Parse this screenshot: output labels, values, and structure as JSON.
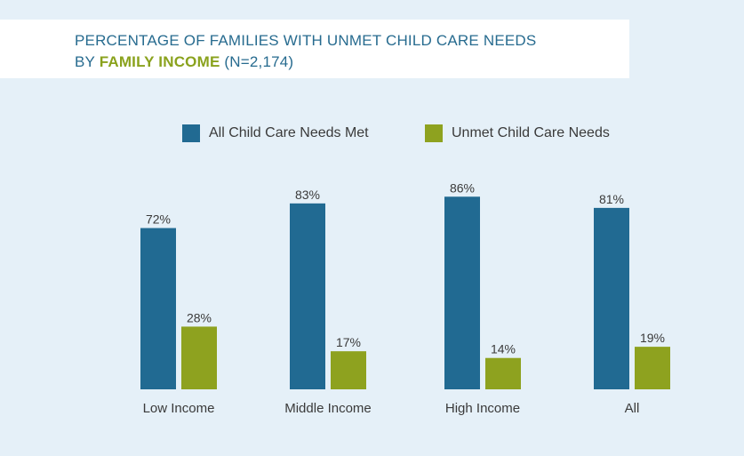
{
  "title": {
    "line1": "PERCENTAGE OF FAMILIES WITH UNMET CHILD CARE NEEDS",
    "line2_prefix": "BY ",
    "line2_highlight": "FAMILY INCOME",
    "line2_suffix": " (N=2,174)"
  },
  "colors": {
    "met": "#216a92",
    "unmet": "#8ea21f",
    "background": "#e5f0f8"
  },
  "chart_data": {
    "type": "bar",
    "title": "PERCENTAGE OF FAMILIES WITH UNMET CHILD CARE NEEDS BY FAMILY INCOME (N=2,174)",
    "categories": [
      "Low Income",
      "Middle Income",
      "High Income",
      "All"
    ],
    "series": [
      {
        "name": "All Child Care Needs Met",
        "values": [
          72,
          83,
          86,
          81
        ],
        "labels": [
          "72%",
          "83%",
          "86%",
          "81%"
        ]
      },
      {
        "name": "Unmet Child Care Needs",
        "values": [
          28,
          17,
          14,
          19
        ],
        "labels": [
          "28%",
          "17%",
          "14%",
          "19%"
        ]
      }
    ],
    "ylim": [
      0,
      100
    ],
    "grid": false,
    "legend_position": "top"
  }
}
